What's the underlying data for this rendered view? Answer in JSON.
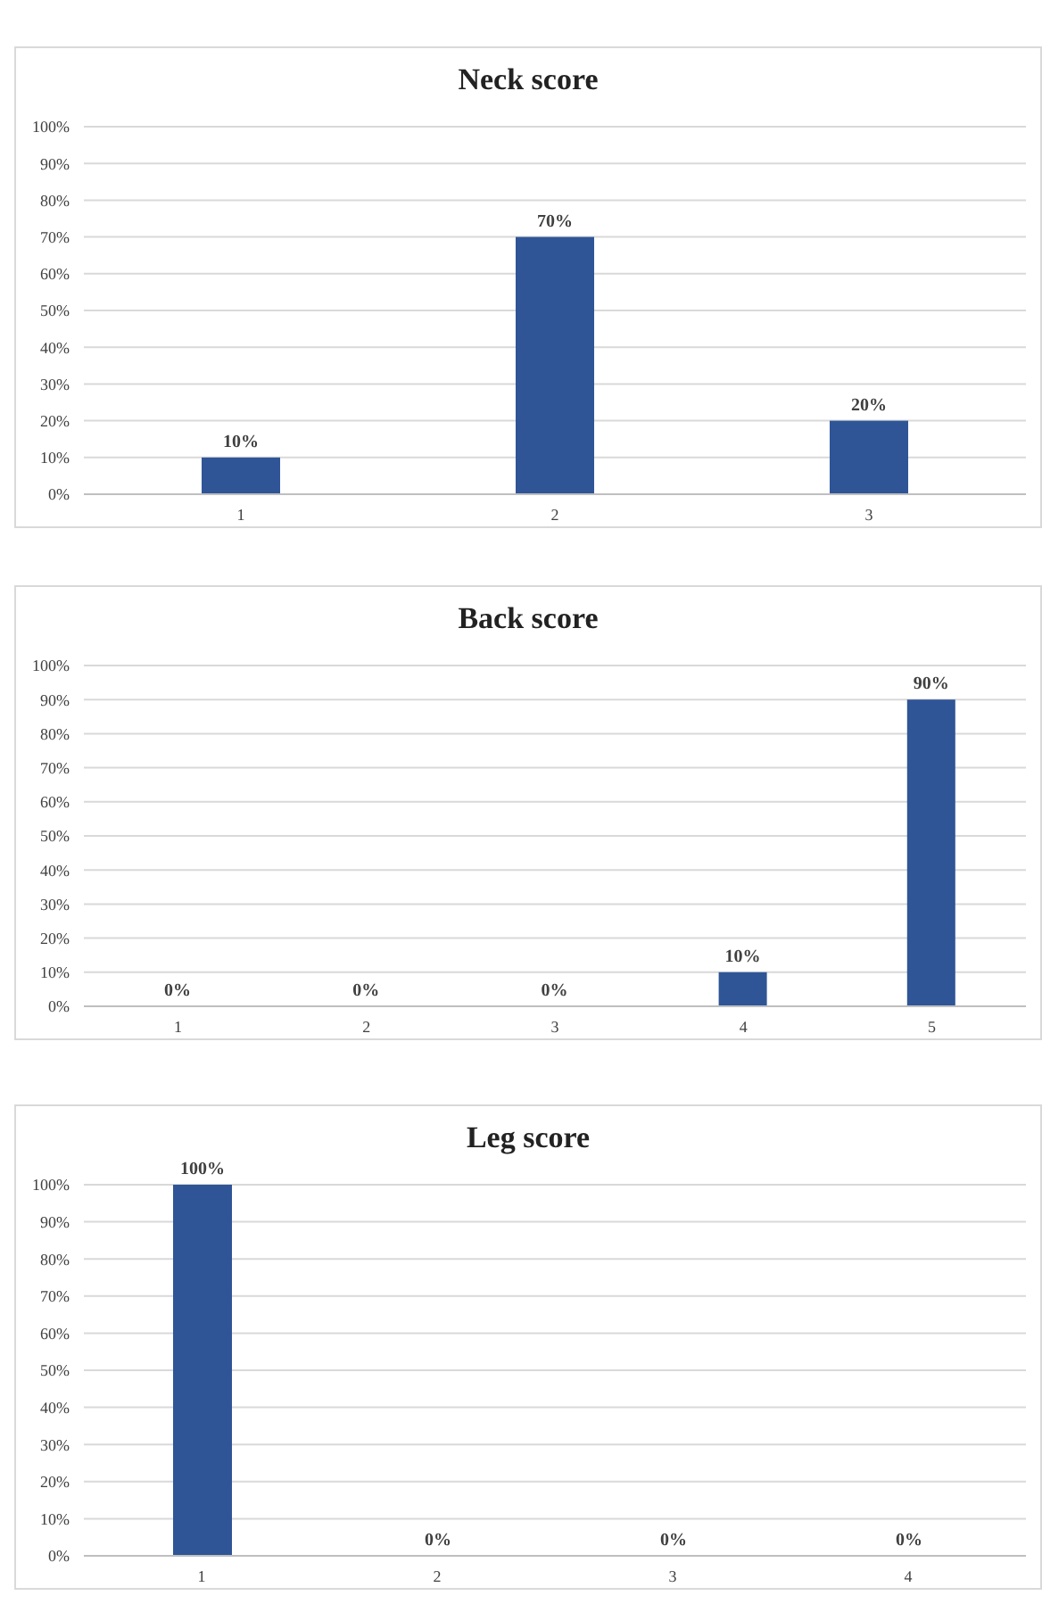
{
  "chart_data": [
    {
      "type": "bar",
      "title": "Neck score",
      "categories": [
        "1",
        "2",
        "3"
      ],
      "values": [
        10,
        70,
        20
      ],
      "color": "#2f5597",
      "value_labels": [
        "10%",
        "70%",
        "20%"
      ],
      "ylim": [
        0,
        100
      ],
      "yticks": [
        {
          "value": 0,
          "label": "0%"
        },
        {
          "value": 10,
          "label": "10%"
        },
        {
          "value": 20,
          "label": "20%"
        },
        {
          "value": 30,
          "label": "30%"
        },
        {
          "value": 40,
          "label": "40%"
        },
        {
          "value": 50,
          "label": "50%"
        },
        {
          "value": 60,
          "label": "60%"
        },
        {
          "value": 70,
          "label": "70%"
        },
        {
          "value": 80,
          "label": "80%"
        },
        {
          "value": 90,
          "label": "90%"
        },
        {
          "value": 100,
          "label": "100%"
        }
      ],
      "grid": "y",
      "legend": false
    },
    {
      "type": "bar",
      "title": "Back score",
      "categories": [
        "1",
        "2",
        "3",
        "4",
        "5"
      ],
      "values": [
        0,
        0,
        0,
        10,
        90
      ],
      "color": "#2f5597",
      "value_labels": [
        "0%",
        "0%",
        "0%",
        "10%",
        "90%"
      ],
      "ylim": [
        0,
        100
      ],
      "yticks": [
        {
          "value": 0,
          "label": "0%"
        },
        {
          "value": 10,
          "label": "10%"
        },
        {
          "value": 20,
          "label": "20%"
        },
        {
          "value": 30,
          "label": "30%"
        },
        {
          "value": 40,
          "label": "40%"
        },
        {
          "value": 50,
          "label": "50%"
        },
        {
          "value": 60,
          "label": "60%"
        },
        {
          "value": 70,
          "label": "70%"
        },
        {
          "value": 80,
          "label": "80%"
        },
        {
          "value": 90,
          "label": "90%"
        },
        {
          "value": 100,
          "label": "100%"
        }
      ],
      "grid": "y",
      "legend": false
    },
    {
      "type": "bar",
      "title": "Leg score",
      "categories": [
        "1",
        "2",
        "3",
        "4"
      ],
      "values": [
        100,
        0,
        0,
        0
      ],
      "color": "#2f5597",
      "value_labels": [
        "100%",
        "0%",
        "0%",
        "0%"
      ],
      "ylim": [
        0,
        100
      ],
      "yticks": [
        {
          "value": 0,
          "label": "0%"
        },
        {
          "value": 10,
          "label": "10%"
        },
        {
          "value": 20,
          "label": "20%"
        },
        {
          "value": 30,
          "label": "30%"
        },
        {
          "value": 40,
          "label": "40%"
        },
        {
          "value": 50,
          "label": "50%"
        },
        {
          "value": 60,
          "label": "60%"
        },
        {
          "value": 70,
          "label": "70%"
        },
        {
          "value": 80,
          "label": "80%"
        },
        {
          "value": 90,
          "label": "90%"
        },
        {
          "value": 100,
          "label": "100%"
        }
      ],
      "grid": "y",
      "legend": false
    }
  ]
}
